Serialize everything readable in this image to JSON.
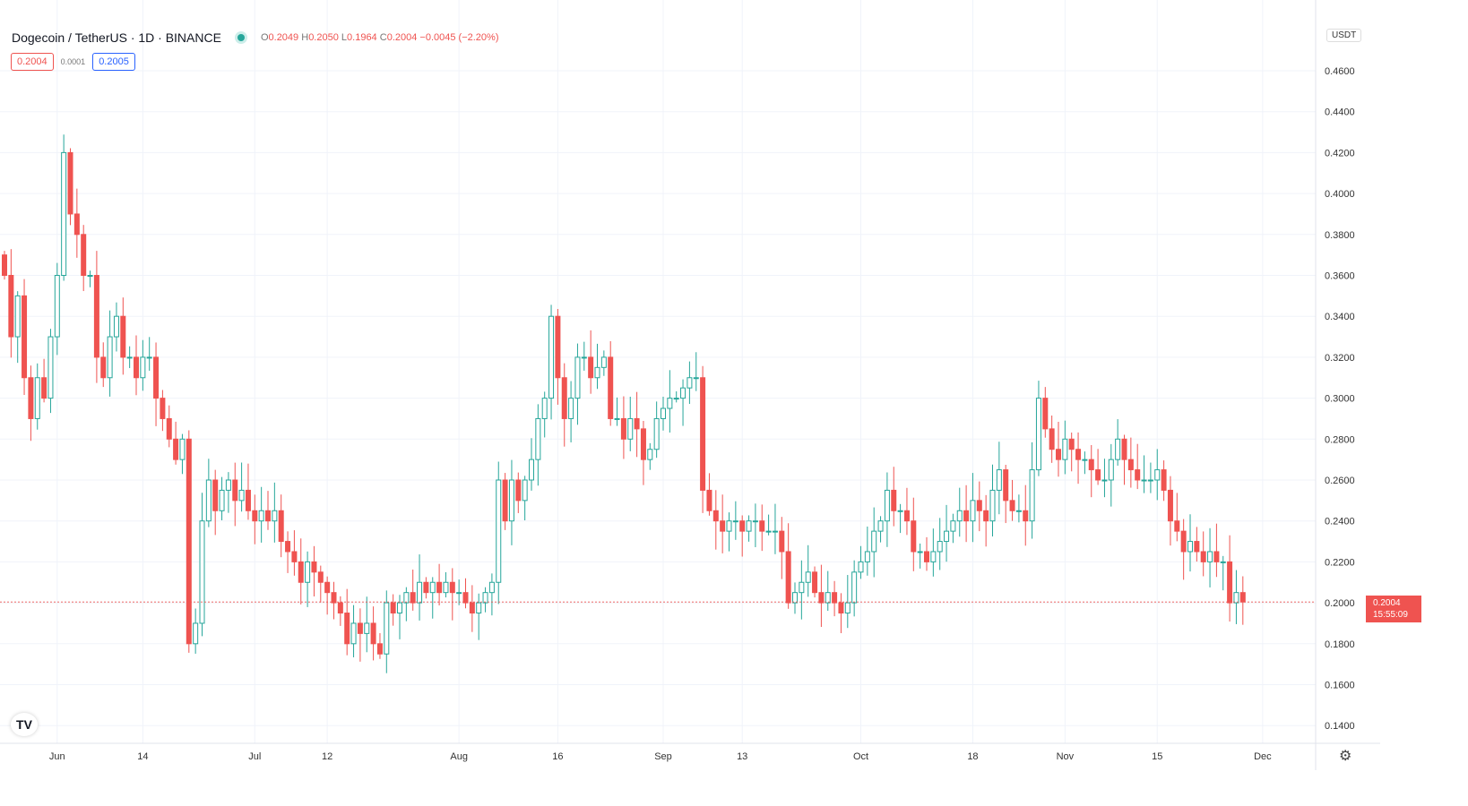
{
  "header": {
    "symbol": "Dogecoin / TetherUS · 1D · BINANCE",
    "o_label": "O",
    "o": "0.2049",
    "h_label": "H",
    "h": "0.2050",
    "l_label": "L",
    "l": "0.1964",
    "c_label": "C",
    "c": "0.2004",
    "change": "−0.0045 (−2.20%)",
    "sell_price": "0.2004",
    "spread": "0.0001",
    "buy_price": "0.2005"
  },
  "axis": {
    "currency": "USDT",
    "last_price": "0.2004",
    "countdown": "15:55:09"
  },
  "colors": {
    "up": "#26a69a",
    "down": "#ef5350",
    "grid": "#f0f3fa"
  },
  "chart_data": {
    "type": "candlestick",
    "title": "Dogecoin / TetherUS · 1D · BINANCE",
    "start_date": "2021-05-24",
    "ylim": [
      0.13,
      0.475
    ],
    "yticks": [
      "0.1400",
      "0.1600",
      "0.1800",
      "0.2000",
      "0.2200",
      "0.2400",
      "0.2600",
      "0.2800",
      "0.3000",
      "0.3200",
      "0.3400",
      "0.3600",
      "0.3800",
      "0.4000",
      "0.4200",
      "0.4400",
      "0.4600"
    ],
    "xticks": [
      {
        "label": "Jun",
        "day": 8
      },
      {
        "label": "14",
        "day": 21
      },
      {
        "label": "Jul",
        "day": 38
      },
      {
        "label": "12",
        "day": 49
      },
      {
        "label": "Aug",
        "day": 69
      },
      {
        "label": "16",
        "day": 84
      },
      {
        "label": "Sep",
        "day": 100
      },
      {
        "label": "13",
        "day": 112
      },
      {
        "label": "Oct",
        "day": 130
      },
      {
        "label": "18",
        "day": 147
      },
      {
        "label": "Nov",
        "day": 161
      },
      {
        "label": "15",
        "day": 175
      },
      {
        "label": "Dec",
        "day": 191
      }
    ],
    "first_open": 0.37,
    "closes": [
      0.36,
      0.33,
      0.35,
      0.31,
      0.29,
      0.31,
      0.3,
      0.33,
      0.36,
      0.42,
      0.39,
      0.38,
      0.36,
      0.36,
      0.32,
      0.31,
      0.33,
      0.34,
      0.32,
      0.32,
      0.31,
      0.32,
      0.32,
      0.3,
      0.29,
      0.28,
      0.27,
      0.28,
      0.18,
      0.19,
      0.24,
      0.26,
      0.245,
      0.255,
      0.26,
      0.25,
      0.255,
      0.245,
      0.24,
      0.245,
      0.24,
      0.245,
      0.23,
      0.225,
      0.22,
      0.21,
      0.22,
      0.215,
      0.21,
      0.205,
      0.2,
      0.195,
      0.18,
      0.19,
      0.185,
      0.19,
      0.18,
      0.175,
      0.2,
      0.195,
      0.2,
      0.205,
      0.2,
      0.21,
      0.205,
      0.21,
      0.205,
      0.21,
      0.205,
      0.205,
      0.2,
      0.195,
      0.2,
      0.205,
      0.21,
      0.26,
      0.24,
      0.26,
      0.25,
      0.26,
      0.27,
      0.29,
      0.3,
      0.34,
      0.31,
      0.29,
      0.3,
      0.32,
      0.32,
      0.31,
      0.315,
      0.32,
      0.29,
      0.29,
      0.28,
      0.29,
      0.285,
      0.27,
      0.275,
      0.29,
      0.295,
      0.3,
      0.3,
      0.305,
      0.31,
      0.31,
      0.255,
      0.245,
      0.24,
      0.235,
      0.24,
      0.24,
      0.235,
      0.24,
      0.24,
      0.235,
      0.235,
      0.235,
      0.225,
      0.2,
      0.205,
      0.21,
      0.215,
      0.205,
      0.2,
      0.205,
      0.2,
      0.195,
      0.2,
      0.215,
      0.22,
      0.225,
      0.235,
      0.24,
      0.255,
      0.245,
      0.245,
      0.24,
      0.225,
      0.225,
      0.22,
      0.225,
      0.23,
      0.235,
      0.24,
      0.245,
      0.24,
      0.25,
      0.245,
      0.24,
      0.255,
      0.265,
      0.25,
      0.245,
      0.245,
      0.24,
      0.265,
      0.3,
      0.285,
      0.275,
      0.27,
      0.28,
      0.275,
      0.27,
      0.27,
      0.265,
      0.26,
      0.26,
      0.27,
      0.28,
      0.27,
      0.265,
      0.26,
      0.26,
      0.26,
      0.265,
      0.255,
      0.24,
      0.235,
      0.225,
      0.23,
      0.225,
      0.22,
      0.225,
      0.22,
      0.22,
      0.2,
      0.205,
      0.2004
    ]
  }
}
